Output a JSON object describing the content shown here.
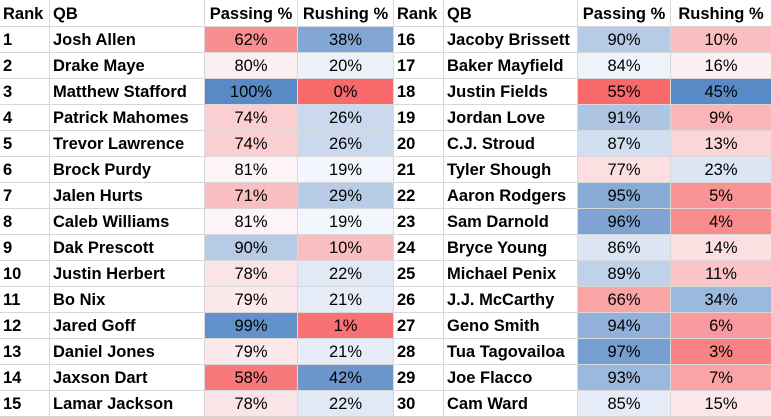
{
  "headers": {
    "left": {
      "rank": "Rank",
      "qb": "QB",
      "passing": "Passing %",
      "rushing": "Rushing %"
    },
    "right": {
      "rank": "Rank",
      "qb": "QB",
      "passing": "Passing %",
      "rushing": "Rushing %"
    }
  },
  "colors": {
    "high": "#5a8ac6",
    "mid": "#fcfcff",
    "low": "#f8696b",
    "gridline": "#d8d8d8"
  },
  "left_rows": [
    {
      "rank": "1",
      "qb": "Josh Allen",
      "passing": "62%",
      "rushing": "38%"
    },
    {
      "rank": "2",
      "qb": "Drake Maye",
      "passing": "80%",
      "rushing": "20%"
    },
    {
      "rank": "3",
      "qb": "Matthew Stafford",
      "passing": "100%",
      "rushing": "0%"
    },
    {
      "rank": "4",
      "qb": "Patrick Mahomes",
      "passing": "74%",
      "rushing": "26%"
    },
    {
      "rank": "5",
      "qb": "Trevor Lawrence",
      "passing": "74%",
      "rushing": "26%"
    },
    {
      "rank": "6",
      "qb": "Brock Purdy",
      "passing": "81%",
      "rushing": "19%"
    },
    {
      "rank": "7",
      "qb": "Jalen Hurts",
      "passing": "71%",
      "rushing": "29%"
    },
    {
      "rank": "8",
      "qb": "Caleb Williams",
      "passing": "81%",
      "rushing": "19%"
    },
    {
      "rank": "9",
      "qb": "Dak Prescott",
      "passing": "90%",
      "rushing": "10%"
    },
    {
      "rank": "10",
      "qb": "Justin Herbert",
      "passing": "78%",
      "rushing": "22%"
    },
    {
      "rank": "11",
      "qb": "Bo Nix",
      "passing": "79%",
      "rushing": "21%"
    },
    {
      "rank": "12",
      "qb": "Jared Goff",
      "passing": "99%",
      "rushing": "1%"
    },
    {
      "rank": "13",
      "qb": "Daniel Jones",
      "passing": "79%",
      "rushing": "21%"
    },
    {
      "rank": "14",
      "qb": "Jaxson Dart",
      "passing": "58%",
      "rushing": "42%"
    },
    {
      "rank": "15",
      "qb": "Lamar Jackson",
      "passing": "78%",
      "rushing": "22%"
    }
  ],
  "right_rows": [
    {
      "rank": "16",
      "qb": "Jacoby Brissett",
      "passing": "90%",
      "rushing": "10%"
    },
    {
      "rank": "17",
      "qb": "Baker Mayfield",
      "passing": "84%",
      "rushing": "16%"
    },
    {
      "rank": "18",
      "qb": "Justin Fields",
      "passing": "55%",
      "rushing": "45%"
    },
    {
      "rank": "19",
      "qb": "Jordan Love",
      "passing": "91%",
      "rushing": "9%"
    },
    {
      "rank": "20",
      "qb": "C.J. Stroud",
      "passing": "87%",
      "rushing": "13%"
    },
    {
      "rank": "21",
      "qb": "Tyler Shough",
      "passing": "77%",
      "rushing": "23%"
    },
    {
      "rank": "22",
      "qb": "Aaron Rodgers",
      "passing": "95%",
      "rushing": "5%"
    },
    {
      "rank": "23",
      "qb": "Sam Darnold",
      "passing": "96%",
      "rushing": "4%"
    },
    {
      "rank": "24",
      "qb": "Bryce Young",
      "passing": "86%",
      "rushing": "14%"
    },
    {
      "rank": "25",
      "qb": "Michael Penix",
      "passing": "89%",
      "rushing": "11%"
    },
    {
      "rank": "26",
      "qb": "J.J. McCarthy",
      "passing": "66%",
      "rushing": "34%"
    },
    {
      "rank": "27",
      "qb": "Geno Smith",
      "passing": "94%",
      "rushing": "6%"
    },
    {
      "rank": "28",
      "qb": "Tua Tagovailoa",
      "passing": "97%",
      "rushing": "3%"
    },
    {
      "rank": "29",
      "qb": "Joe Flacco",
      "passing": "93%",
      "rushing": "7%"
    },
    {
      "rank": "30",
      "qb": "Cam Ward",
      "passing": "85%",
      "rushing": "15%"
    }
  ]
}
